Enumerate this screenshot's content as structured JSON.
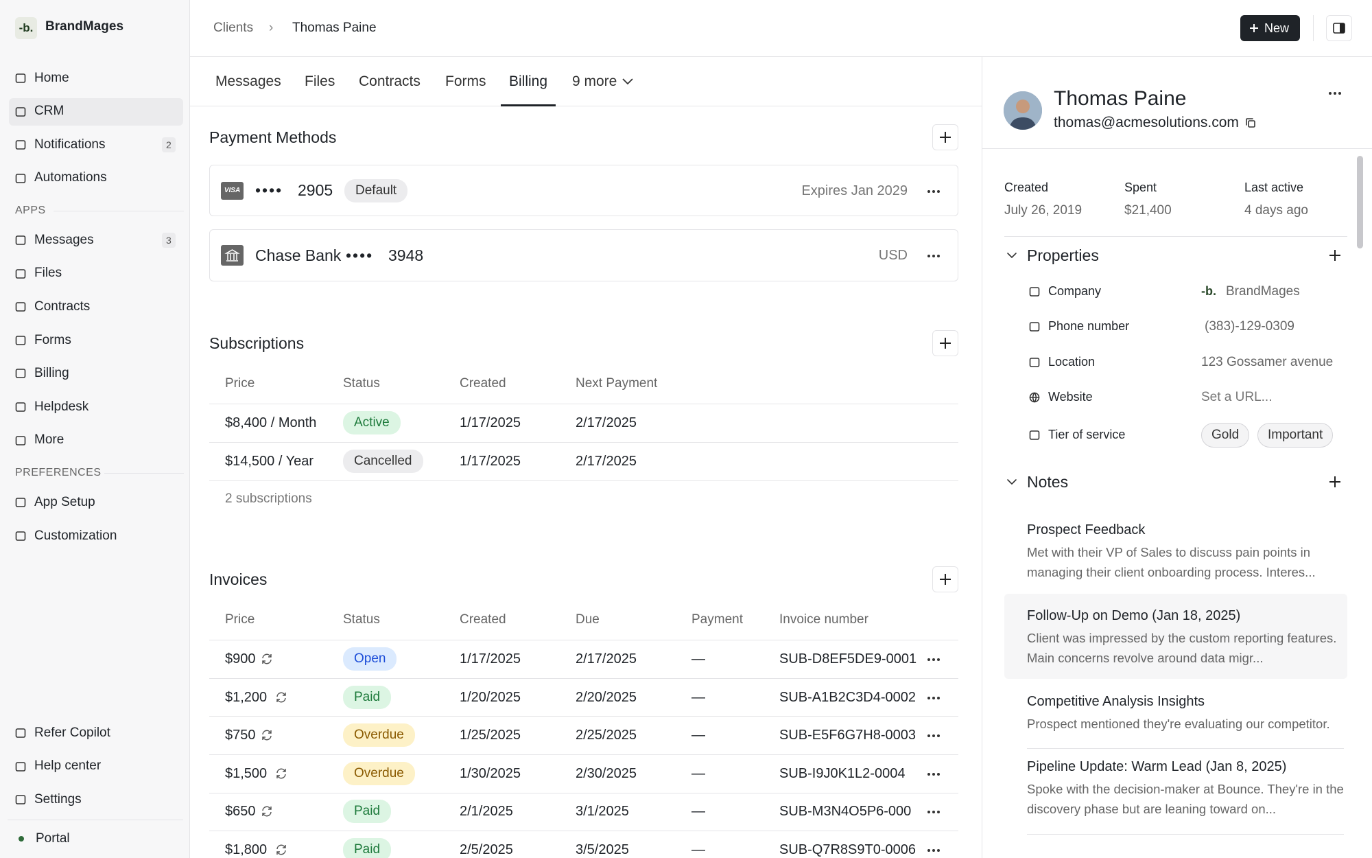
{
  "sidebar": {
    "logo": "-b.",
    "brand": "BrandMages",
    "nav": [
      {
        "label": "Home"
      },
      {
        "label": "CRM",
        "active": true
      },
      {
        "label": "Notifications",
        "badge": "2"
      },
      {
        "label": "Automations"
      }
    ],
    "apps_heading": "APPS",
    "apps": [
      {
        "label": "Messages",
        "badge": "3"
      },
      {
        "label": "Files"
      },
      {
        "label": "Contracts"
      },
      {
        "label": "Forms"
      },
      {
        "label": "Billing"
      },
      {
        "label": "Helpdesk"
      },
      {
        "label": "More"
      }
    ],
    "preferences_heading": "PREFERENCES",
    "preferences": [
      {
        "label": "App Setup"
      },
      {
        "label": "Customization"
      }
    ],
    "footer": [
      {
        "label": "Refer Copilot"
      },
      {
        "label": "Help center"
      },
      {
        "label": "Settings"
      }
    ],
    "portal": "Portal"
  },
  "header": {
    "breadcrumb": [
      "Clients",
      "Thomas Paine"
    ],
    "new_button": "New"
  },
  "tabs": {
    "items": [
      {
        "label": "Messages"
      },
      {
        "label": "Files"
      },
      {
        "label": "Contracts"
      },
      {
        "label": "Forms"
      },
      {
        "label": "Billing",
        "active": true
      }
    ],
    "more": "9 more"
  },
  "payment_methods": {
    "title": "Payment Methods",
    "cards": [
      {
        "brand": "VISA",
        "dots": "••••",
        "last4": "2905",
        "badge": "Default",
        "right": "Expires Jan 2029"
      },
      {
        "name": "Chase Bank",
        "dots": "••••",
        "last4": "3948",
        "right": "USD"
      }
    ]
  },
  "subscriptions": {
    "title": "Subscriptions",
    "columns": [
      "Price",
      "Status",
      "Created",
      "Next Payment"
    ],
    "rows": [
      {
        "price": "$8,400 / Month",
        "status": "Active",
        "tone": "green",
        "created": "1/17/2025",
        "next": "2/17/2025"
      },
      {
        "price": "$14,500 / Year",
        "status": "Cancelled",
        "tone": "gray",
        "created": "1/17/2025",
        "next": "2/17/2025"
      }
    ],
    "footer": "2 subscriptions"
  },
  "invoices": {
    "title": "Invoices",
    "columns": [
      "Price",
      "Status",
      "Created",
      "Due",
      "Payment",
      "Invoice number"
    ],
    "rows": [
      {
        "price": "$900",
        "status": "Open",
        "tone": "blue",
        "created": "1/17/2025",
        "due": "2/17/2025",
        "payment": "—",
        "number": "SUB-D8EF5DE9-0001"
      },
      {
        "price": "$1,200",
        "status": "Paid",
        "tone": "green",
        "created": "1/20/2025",
        "due": "2/20/2025",
        "payment": "—",
        "number": "SUB-A1B2C3D4-0002"
      },
      {
        "price": "$750",
        "status": "Overdue",
        "tone": "yellow",
        "created": "1/25/2025",
        "due": "2/25/2025",
        "payment": "—",
        "number": "SUB-E5F6G7H8-0003"
      },
      {
        "price": "$1,500",
        "status": "Overdue",
        "tone": "yellow",
        "created": "1/30/2025",
        "due": "2/30/2025",
        "payment": "—",
        "number": "SUB-I9J0K1L2-0004"
      },
      {
        "price": "$650",
        "status": "Paid",
        "tone": "green",
        "created": "2/1/2025",
        "due": "3/1/2025",
        "payment": "—",
        "number": "SUB-M3N4O5P6-000"
      },
      {
        "price": "$1,800",
        "status": "Paid",
        "tone": "green",
        "created": "2/5/2025",
        "due": "3/5/2025",
        "payment": "—",
        "number": "SUB-Q7R8S9T0-0006"
      }
    ]
  },
  "contact": {
    "name": "Thomas Paine",
    "email": "thomas@acmesolutions.com",
    "stats": [
      {
        "label": "Created",
        "value": "July 26, 2019"
      },
      {
        "label": "Spent",
        "value": "$21,400"
      },
      {
        "label": "Last active",
        "value": "4 days ago"
      }
    ],
    "properties_title": "Properties",
    "properties": [
      {
        "label": "Company",
        "logo": "-b.",
        "value": "BrandMages"
      },
      {
        "label": "Phone number",
        "value": "(383)-129-0309"
      },
      {
        "label": "Location",
        "value": "123 Gossamer avenue"
      },
      {
        "label": "Website",
        "value": "Set a URL..."
      },
      {
        "label": "Tier of service",
        "tags": [
          "Gold",
          "Important"
        ]
      }
    ],
    "notes_title": "Notes",
    "notes": [
      {
        "title": "Prospect Feedback",
        "body": "Met with their VP of Sales to discuss pain points in managing their client onboarding process. Interes..."
      },
      {
        "title": "Follow-Up on Demo (Jan 18, 2025)",
        "body": "Client was impressed by the custom reporting features. Main concerns revolve around data migr...",
        "highlight": true
      },
      {
        "title": "Competitive Analysis Insights",
        "body": "Prospect mentioned they're evaluating our competitor."
      },
      {
        "title": "Pipeline Update: Warm Lead (Jan 8, 2025)",
        "body": "Spoke with the decision-maker at Bounce. They're in the discovery phase but are leaning toward on..."
      }
    ]
  }
}
